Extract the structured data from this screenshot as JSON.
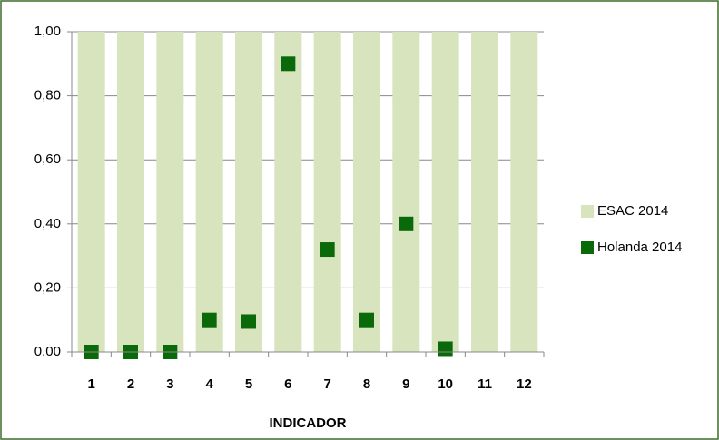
{
  "chart_data": {
    "type": "bar",
    "x_label": "INDICADOR",
    "categories": [
      "1",
      "2",
      "3",
      "4",
      "5",
      "6",
      "7",
      "8",
      "9",
      "10",
      "11",
      "12"
    ],
    "series": [
      {
        "name": "ESAC 2014",
        "type": "bar",
        "color": "#d7e4bd",
        "values": [
          1,
          1,
          1,
          1,
          1,
          1,
          1,
          1,
          1,
          1,
          1,
          1
        ]
      },
      {
        "name": "Holanda 2014",
        "type": "marker",
        "color": "#0a6a0a",
        "values": [
          0,
          0,
          0,
          0.1,
          0.095,
          0.9,
          0.32,
          0.1,
          0.4,
          0.01,
          null,
          null
        ]
      }
    ],
    "ylim": [
      0,
      1
    ],
    "yticks": [
      {
        "value": 0,
        "label": "0,00"
      },
      {
        "value": 0.2,
        "label": "0,20"
      },
      {
        "value": 0.4,
        "label": "0,40"
      },
      {
        "value": 0.6,
        "label": "0,60"
      },
      {
        "value": 0.8,
        "label": "0,80"
      },
      {
        "value": 1,
        "label": "1,00"
      }
    ],
    "grid": true,
    "legend": "right"
  }
}
